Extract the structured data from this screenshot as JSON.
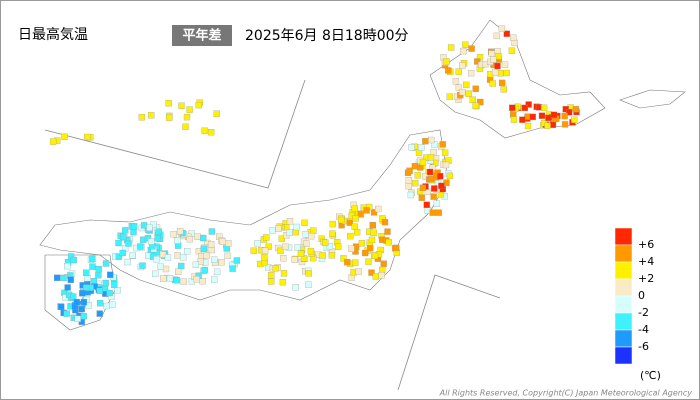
{
  "header": {
    "title": "日最高気温",
    "badge": "平年差",
    "datetime": "2025年6月 8日18時00分"
  },
  "legend": {
    "colors": [
      "#ff2800",
      "#ff9900",
      "#fff000",
      "#faebc8",
      "#d5ffff",
      "#3ff0ff",
      "#1e9bff",
      "#1e32ff"
    ],
    "labels": [
      "+6",
      "+4",
      "+2",
      "0",
      "-2",
      "-4",
      "-6"
    ],
    "unit": "(℃)"
  },
  "footer": {
    "copyright": "All Rights Reserved, Copyright(C) Japan Meteorological Agency"
  }
}
